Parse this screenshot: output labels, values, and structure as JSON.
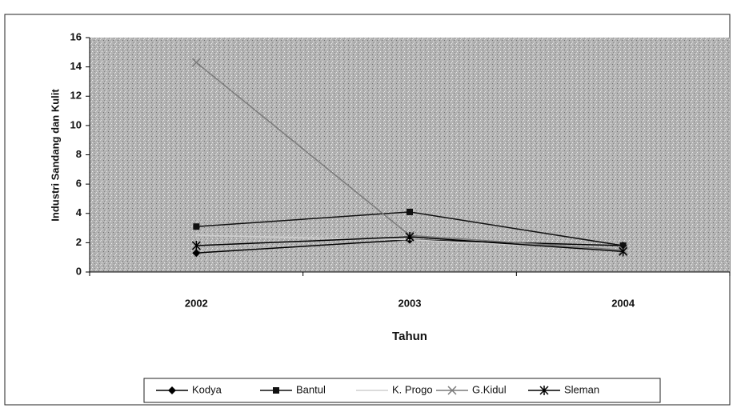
{
  "chart_data": {
    "type": "line",
    "x_label": "Tahun",
    "y_label": "Industri Sandang dan Kulit",
    "categories": [
      "2002",
      "2003",
      "2004"
    ],
    "series": [
      {
        "name": "Kodya",
        "color": "#000000",
        "marker": "diamond",
        "values": [
          1.3,
          2.2,
          1.8
        ]
      },
      {
        "name": "Bantul",
        "color": "#111111",
        "marker": "square",
        "values": [
          3.1,
          4.1,
          1.8
        ]
      },
      {
        "name": "K. Progo",
        "color": "#cfcfcf",
        "marker": "none",
        "values": [
          2.5,
          2.2,
          1.5
        ]
      },
      {
        "name": "G.Kidul",
        "color": "#7a7a7a",
        "marker": "x",
        "values": [
          14.3,
          2.5,
          1.5
        ]
      },
      {
        "name": "Sleman",
        "color": "#000000",
        "marker": "star",
        "values": [
          1.8,
          2.4,
          1.4
        ]
      }
    ],
    "ylim": [
      0,
      16
    ],
    "yticks": [
      0,
      2,
      4,
      6,
      8,
      10,
      12,
      14,
      16
    ],
    "grid": false,
    "legend": "bottom"
  }
}
